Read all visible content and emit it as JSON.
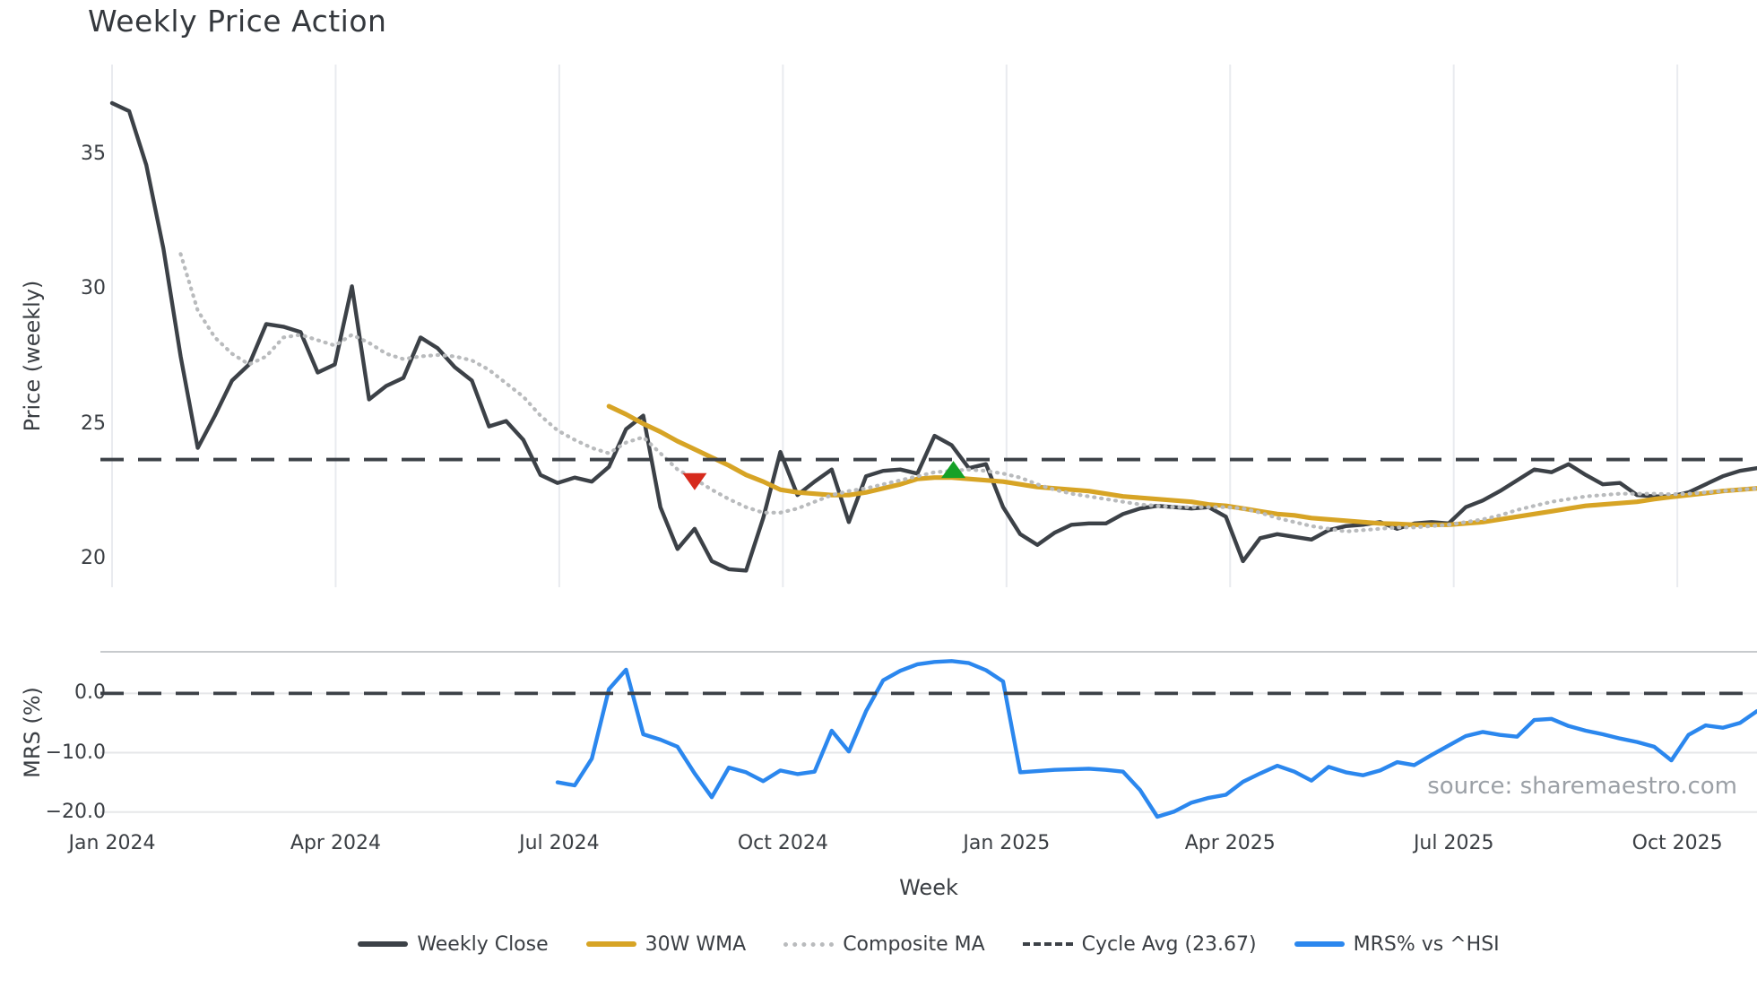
{
  "title": "Weekly Price Action",
  "source": "source: sharemaestro.com",
  "chart_data": {
    "type": "line",
    "title": "Weekly Price Action",
    "xlabel": "Week",
    "x_tick_labels": [
      "Jan 2024",
      "Apr 2024",
      "Jul 2024",
      "Oct 2024",
      "Jan 2025",
      "Apr 2025",
      "Jul 2025",
      "Oct 2025"
    ],
    "x_tick_weeks": [
      1,
      14.05,
      27.1,
      40.15,
      53.2,
      66.25,
      79.3,
      92.35
    ],
    "weeks_total": 97,
    "panels": [
      {
        "name": "price",
        "ylabel": "Price (weekly)",
        "ylim": [
          18.93,
          38.33
        ],
        "yticks": [
          {
            "label": "35",
            "value": 35
          },
          {
            "label": "30",
            "value": 30
          },
          {
            "label": "25",
            "value": 25
          },
          {
            "label": "20",
            "value": 20
          }
        ],
        "grid": "vertical",
        "hline": {
          "label": "Cycle Avg (23.67)",
          "value": 23.67,
          "color": "#3c4147",
          "style": "dashed"
        },
        "markers": [
          {
            "name": "sell-signal",
            "shape": "triangle-down",
            "color": "#d62a1c",
            "week": 35,
            "value": 22.85
          },
          {
            "name": "buy-signal",
            "shape": "triangle-up",
            "color": "#15a127",
            "week": 50.1,
            "value": 23.3
          }
        ],
        "series": [
          {
            "name": "Weekly Close",
            "color": "#3c4147",
            "style": "solid",
            "width": 4.4,
            "start_week": 1,
            "values": [
              36.9,
              36.6,
              34.6,
              31.5,
              27.5,
              24.1,
              25.3,
              26.6,
              27.2,
              28.7,
              28.6,
              28.4,
              26.9,
              27.2,
              30.1,
              25.9,
              26.4,
              26.7,
              28.2,
              27.8,
              27.1,
              26.6,
              24.9,
              25.1,
              24.4,
              23.1,
              22.8,
              23.0,
              22.85,
              23.4,
              24.8,
              25.3,
              21.9,
              20.35,
              21.1,
              19.9,
              19.6,
              19.55,
              21.5,
              23.95,
              22.35,
              22.85,
              23.3,
              21.35,
              23.05,
              23.25,
              23.3,
              23.15,
              24.55,
              24.2,
              23.35,
              23.5,
              21.9,
              20.9,
              20.5,
              20.95,
              21.25,
              21.3,
              21.3,
              21.65,
              21.85,
              21.95,
              21.9,
              21.85,
              21.9,
              21.55,
              19.9,
              20.75,
              20.9,
              20.8,
              20.7,
              21.05,
              21.2,
              21.25,
              21.35,
              21.1,
              21.3,
              21.35,
              21.3,
              21.9,
              22.15,
              22.5,
              22.9,
              23.3,
              23.2,
              23.5,
              23.1,
              22.75,
              22.8,
              22.35,
              22.3,
              22.3,
              22.45,
              22.75,
              23.05,
              23.25,
              23.35
            ]
          },
          {
            "name": "30W WMA",
            "color": "#d7a425",
            "style": "solid",
            "width": 5.2,
            "start_week": 30,
            "values": [
              25.65,
              25.35,
              25.0,
              24.7,
              24.35,
              24.05,
              23.75,
              23.45,
              23.1,
              22.85,
              22.55,
              22.45,
              22.4,
              22.35,
              22.35,
              22.45,
              22.6,
              22.75,
              22.95,
              23.0,
              23.0,
              22.95,
              22.9,
              22.85,
              22.75,
              22.65,
              22.6,
              22.55,
              22.5,
              22.4,
              22.3,
              22.25,
              22.2,
              22.15,
              22.1,
              22.0,
              21.95,
              21.85,
              21.75,
              21.65,
              21.6,
              21.5,
              21.45,
              21.4,
              21.35,
              21.3,
              21.28,
              21.25,
              21.25,
              21.25,
              21.3,
              21.35,
              21.45,
              21.55,
              21.65,
              21.75,
              21.85,
              21.95,
              22.0,
              22.05,
              22.1,
              22.2,
              22.28,
              22.35,
              22.42,
              22.5,
              22.55,
              22.6
            ]
          },
          {
            "name": "Composite MA",
            "color": "#b9bbbd",
            "style": "dotted",
            "width": 4.2,
            "start_week": 5,
            "values": [
              31.3,
              29.2,
              28.2,
              27.6,
              27.2,
              27.5,
              28.2,
              28.3,
              28.1,
              27.9,
              28.3,
              28.0,
              27.6,
              27.4,
              27.5,
              27.55,
              27.5,
              27.35,
              27.0,
              26.5,
              26.0,
              25.3,
              24.75,
              24.4,
              24.1,
              23.9,
              24.3,
              24.5,
              23.9,
              23.3,
              22.95,
              22.55,
              22.2,
              21.9,
              21.7,
              21.7,
              21.85,
              22.1,
              22.35,
              22.5,
              22.6,
              22.75,
              22.9,
              23.05,
              23.2,
              23.25,
              23.3,
              23.25,
              23.15,
              23.0,
              22.75,
              22.55,
              22.4,
              22.3,
              22.2,
              22.1,
              22.0,
              21.95,
              21.9,
              21.9,
              21.9,
              21.9,
              21.85,
              21.7,
              21.5,
              21.35,
              21.2,
              21.1,
              21.0,
              21.05,
              21.1,
              21.15,
              21.15,
              21.2,
              21.25,
              21.35,
              21.45,
              21.6,
              21.8,
              21.95,
              22.1,
              22.2,
              22.3,
              22.35,
              22.4,
              22.4,
              22.4,
              22.38,
              22.4,
              22.45,
              22.5,
              22.55,
              22.6
            ]
          }
        ]
      },
      {
        "name": "mrs",
        "ylabel": "MRS (%)",
        "ylim": [
          -21.7,
          7.0
        ],
        "yticks": [
          {
            "label": "0.0",
            "value": 0
          },
          {
            "label": "−10.0",
            "value": -10
          },
          {
            "label": "−20.0",
            "value": -20
          }
        ],
        "grid": "horizontal",
        "hline": {
          "label": "Zero line",
          "value": 0.0,
          "color": "#3c4147",
          "style": "dashed"
        },
        "markers": [],
        "series": [
          {
            "name": "MRS% vs ^HSI",
            "color": "#2b87ee",
            "style": "solid",
            "width": 4.4,
            "start_week": 27,
            "values": [
              -15.0,
              -15.5,
              -11.0,
              0.7,
              4.0,
              -6.9,
              -7.8,
              -9.0,
              -13.5,
              -17.5,
              -12.5,
              -13.3,
              -14.8,
              -13.0,
              -13.6,
              -13.2,
              -6.3,
              -9.8,
              -3.0,
              2.2,
              3.8,
              4.9,
              5.3,
              5.45,
              5.1,
              3.9,
              2.0,
              -13.3,
              -13.1,
              -12.9,
              -12.8,
              -12.7,
              -12.9,
              -13.2,
              -16.3,
              -20.8,
              -19.9,
              -18.4,
              -17.6,
              -17.1,
              -14.9,
              -13.5,
              -12.2,
              -13.2,
              -14.7,
              -12.4,
              -13.3,
              -13.8,
              -13.0,
              -11.6,
              -12.1,
              -10.4,
              -8.8,
              -7.2,
              -6.5,
              -7.0,
              -7.3,
              -4.5,
              -4.3,
              -5.5,
              -6.3,
              -6.9,
              -7.6,
              -8.2,
              -9.0,
              -11.3,
              -7.0,
              -5.4,
              -5.8,
              -5.0,
              -3.0
            ]
          }
        ]
      }
    ],
    "legend": [
      {
        "label": "Weekly Close",
        "color": "#3c4147",
        "style": "solid"
      },
      {
        "label": "30W WMA",
        "color": "#d7a425",
        "style": "solid"
      },
      {
        "label": "Composite MA",
        "color": "#b9bbbd",
        "style": "dotted"
      },
      {
        "label": "Cycle Avg (23.67)",
        "color": "#3c4147",
        "style": "dashed"
      },
      {
        "label": "MRS% vs ^HSI",
        "color": "#2b87ee",
        "style": "solid"
      }
    ],
    "colors": {
      "grid_vertical": "#e9ebef",
      "grid_horizontal": "#e6e7e9",
      "panel_top_line": "#c7cacd",
      "text": "#3a3e43",
      "source_text": "#9ba0a6"
    }
  }
}
